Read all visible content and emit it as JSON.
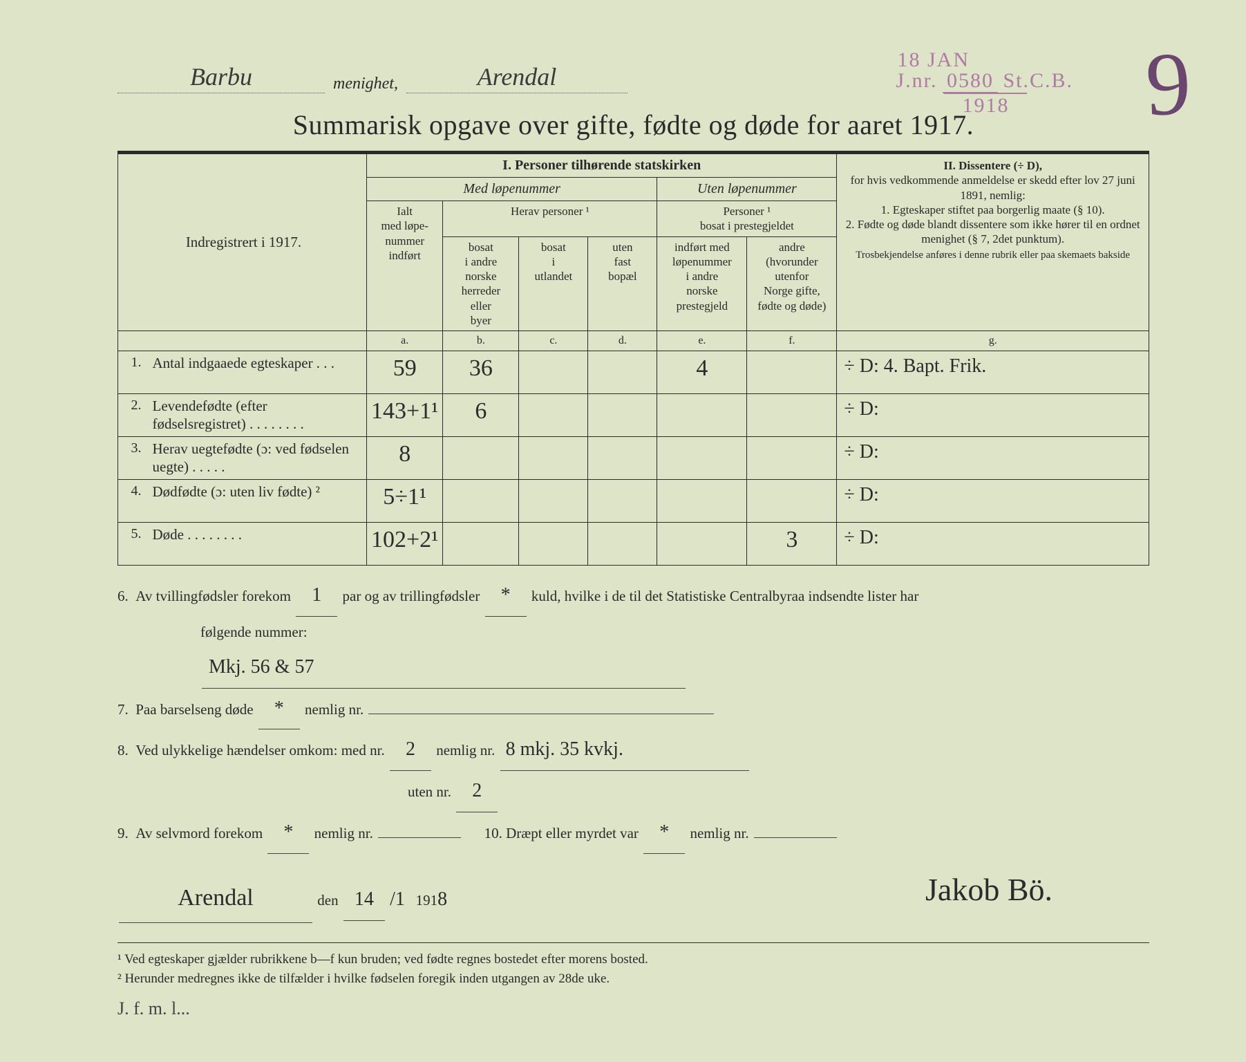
{
  "header": {
    "parish_hand": "Barbu",
    "menighet_label": "menighet,",
    "place_hand": "Arendal",
    "stamp_date": "18 JAN",
    "stamp_jnr_prefix": "J.nr.",
    "stamp_jnr": "0580",
    "stamp_suffix": "St.C.B.",
    "stamp_year": "1918",
    "big_nine": "9",
    "title": "Summarisk opgave over gifte, fødte og døde for aaret 1917."
  },
  "colhead": {
    "section_i": "I.  Personer tilhørende statskirken",
    "med": "Med løpenummer",
    "uten": "Uten løpenummer",
    "ialt": "Ialt\nmed løpe-\nnummer\nindført",
    "herav": "Herav personer ¹",
    "b": "bosat\ni andre\nnorske\nherreder\neller\nbyer",
    "c": "bosat\ni\nutlandet",
    "d": "uten\nfast\nbopæl",
    "personer": "Personer ¹\nbosat i prestegjeldet",
    "e": "indført med\nløpenummer\ni andre\nnorske\nprestegjeld",
    "f": "andre\n(hvorunder\nutenfor\nNorge gifte,\nfødte og døde)",
    "left_label": "Indregistrert i 1917.",
    "letters": {
      "a": "a.",
      "b": "b.",
      "c": "c.",
      "d": "d.",
      "e": "e.",
      "f": "f.",
      "g": "g."
    }
  },
  "section_ii": {
    "title": "II.  Dissentere (÷ D),",
    "body1": "for hvis vedkommende anmeldelse er skedd efter lov 27 juni 1891, nemlig:",
    "item1": "1. Egteskaper stiftet paa borgerlig maate (§ 10).",
    "item2": "2. Fødte og døde blandt dissentere som ikke hører til en ordnet menighet (§ 7, 2det punktum).",
    "small": "Trosbekjendelse anføres i denne rubrik eller paa skemaets bakside"
  },
  "rows": [
    {
      "n": "1.",
      "label": "Antal indgaaede egteskaper . . .",
      "a": "59",
      "b": "36",
      "c": "",
      "d": "",
      "e": "4",
      "f": "",
      "g": "÷ D: 4.  Bapt. Frik."
    },
    {
      "n": "2.",
      "label": "Levendefødte (efter fødselsregistret) . . . . . . . .",
      "a": "143+1¹",
      "b": "6",
      "c": "",
      "d": "",
      "e": "",
      "f": "",
      "g": "÷ D:"
    },
    {
      "n": "3.",
      "label": "Herav uegtefødte (ɔ: ved fødselen uegte) . . . . .",
      "a": "8",
      "b": "",
      "c": "",
      "d": "",
      "e": "",
      "f": "",
      "g": "÷ D:"
    },
    {
      "n": "4.",
      "label": "Dødfødte (ɔ: uten liv fødte) ²",
      "a": "5÷1¹",
      "b": "",
      "c": "",
      "d": "",
      "e": "",
      "f": "",
      "g": "÷ D:"
    },
    {
      "n": "5.",
      "label": "Døde . . . . . . . .",
      "a": "102+2¹",
      "b": "",
      "c": "",
      "d": "",
      "e": "",
      "f": "3",
      "g": "÷ D:"
    }
  ],
  "lower": {
    "l6a": "Av tvillingfødsler forekom",
    "l6_twin": "1",
    "l6b": "par og av trillingfødsler",
    "l6_trip": "*",
    "l6c": "kuld, hvilke i de til det Statistiske Centralbyraa indsendte lister har",
    "l6d": "følgende nummer:",
    "l6_nums": "Mkj. 56 & 57",
    "l7": "Paa barselseng døde",
    "l7_v": "*",
    "l7b": "nemlig nr.",
    "l8": "Ved ulykkelige hændelser omkom:  med nr.",
    "l8_med": "2",
    "l8b": "nemlig nr.",
    "l8_detail": "8 mkj.  35 kvkj.",
    "l8_uten_lbl": "uten nr.",
    "l8_uten": "2",
    "l9": "Av selvmord forekom",
    "l9_v": "*",
    "l9b": "nemlig nr.",
    "l10": "10.  Dræpt eller myrdet var",
    "l10_v": "*",
    "l10b": "nemlig nr.",
    "place": "Arendal",
    "den": "den",
    "day": "14",
    "sep": "/1",
    "year_prefix": "191",
    "year_last": "8",
    "signature": "Jakob Bö."
  },
  "footnotes": {
    "f1": "¹ Ved egteskaper gjælder rubrikkene b—f kun bruden; ved fødte regnes bostedet efter morens bosted.",
    "f2": "² Herunder medregnes ikke de tilfælder i hvilke fødselen foregik inden utgangen av 28de uke.",
    "margin": "J. f. m. l..."
  }
}
